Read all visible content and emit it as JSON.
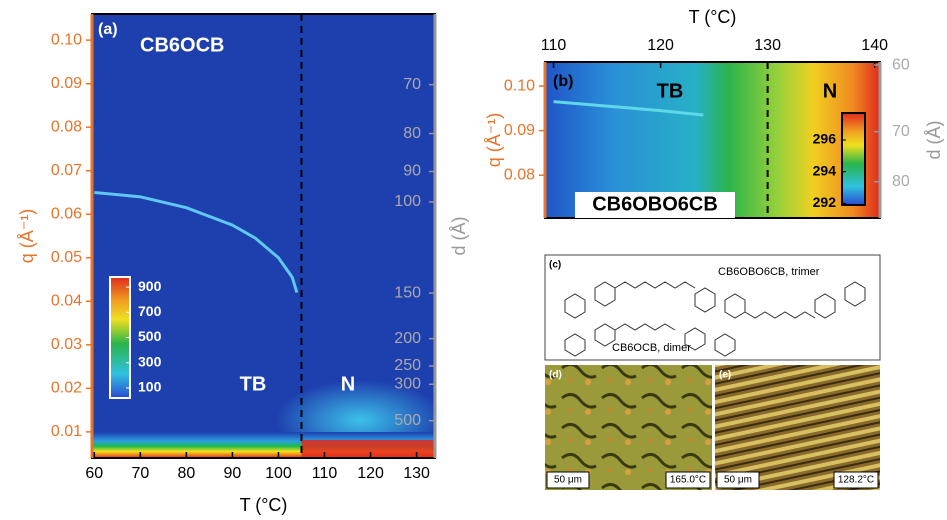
{
  "chart_data": [
    {
      "type": "heatmap",
      "panel": "(a)",
      "title": "CB6OCB",
      "x_label": "T (°C)",
      "y_label": "q (Å⁻¹)",
      "y2_label": "d (Å)",
      "xlim": [
        59.5,
        134
      ],
      "xticks": [
        60,
        70,
        80,
        90,
        100,
        110,
        120,
        130
      ],
      "ylim": [
        0.004,
        0.106
      ],
      "yticks": [
        0.01,
        0.02,
        0.03,
        0.04,
        0.05,
        0.06,
        0.07,
        0.08,
        0.09,
        {
          "value": 0.1,
          "label": "0.10"
        }
      ],
      "y2scale": "reciprocal",
      "y2ticks": [
        70,
        80,
        90,
        100,
        150,
        200,
        250,
        300,
        500
      ],
      "transition": 105,
      "annotations": [
        "TB",
        "N"
      ],
      "x": [
        60,
        70,
        80,
        90,
        95,
        100,
        103,
        104
      ],
      "values": [
        0.065,
        0.064,
        0.0615,
        0.0575,
        0.0545,
        0.05,
        0.0455,
        0.042
      ],
      "color": "#5ec8f0",
      "colorbar": {
        "lim": [
          20,
          980
        ],
        "ticks": [
          100,
          300,
          500,
          700,
          900
        ]
      }
    },
    {
      "type": "heatmap",
      "panel": "(b)",
      "title": "CB6OBO6CB",
      "x_label": "T (°C)",
      "y_label": "q (Å⁻¹)",
      "y2_label": "d (Å)",
      "xlim": [
        109.2,
        140.5
      ],
      "xticks": [
        110,
        120,
        130,
        140
      ],
      "ylim": [
        0.0704,
        0.1054
      ],
      "yticks": [
        0.08,
        0.09,
        {
          "value": 0.1,
          "label": "0.10"
        }
      ],
      "y2scale": "reciprocal",
      "y2ticks": [
        60,
        70,
        80
      ],
      "transition": 130,
      "annotations": [
        "TB",
        "N"
      ],
      "x": [
        110,
        115,
        120,
        124
      ],
      "values": [
        0.0965,
        0.0955,
        0.0945,
        0.0935
      ],
      "color": "#5ed8e8",
      "colorbar": {
        "lim": [
          291.9,
          297.7
        ],
        "ticks": [
          292,
          294,
          296
        ]
      }
    }
  ],
  "panels": [
    {
      "label": "(c)",
      "texts": [
        "CB6OBO6CB, trimer",
        "CB6OCB, dimer"
      ]
    },
    {
      "label": "(d)",
      "scale_bar": "50 μm",
      "temperature": "165.0°C"
    },
    {
      "label": "(e)",
      "scale_bar": "50 μm",
      "temperature": "128.2°C"
    }
  ]
}
